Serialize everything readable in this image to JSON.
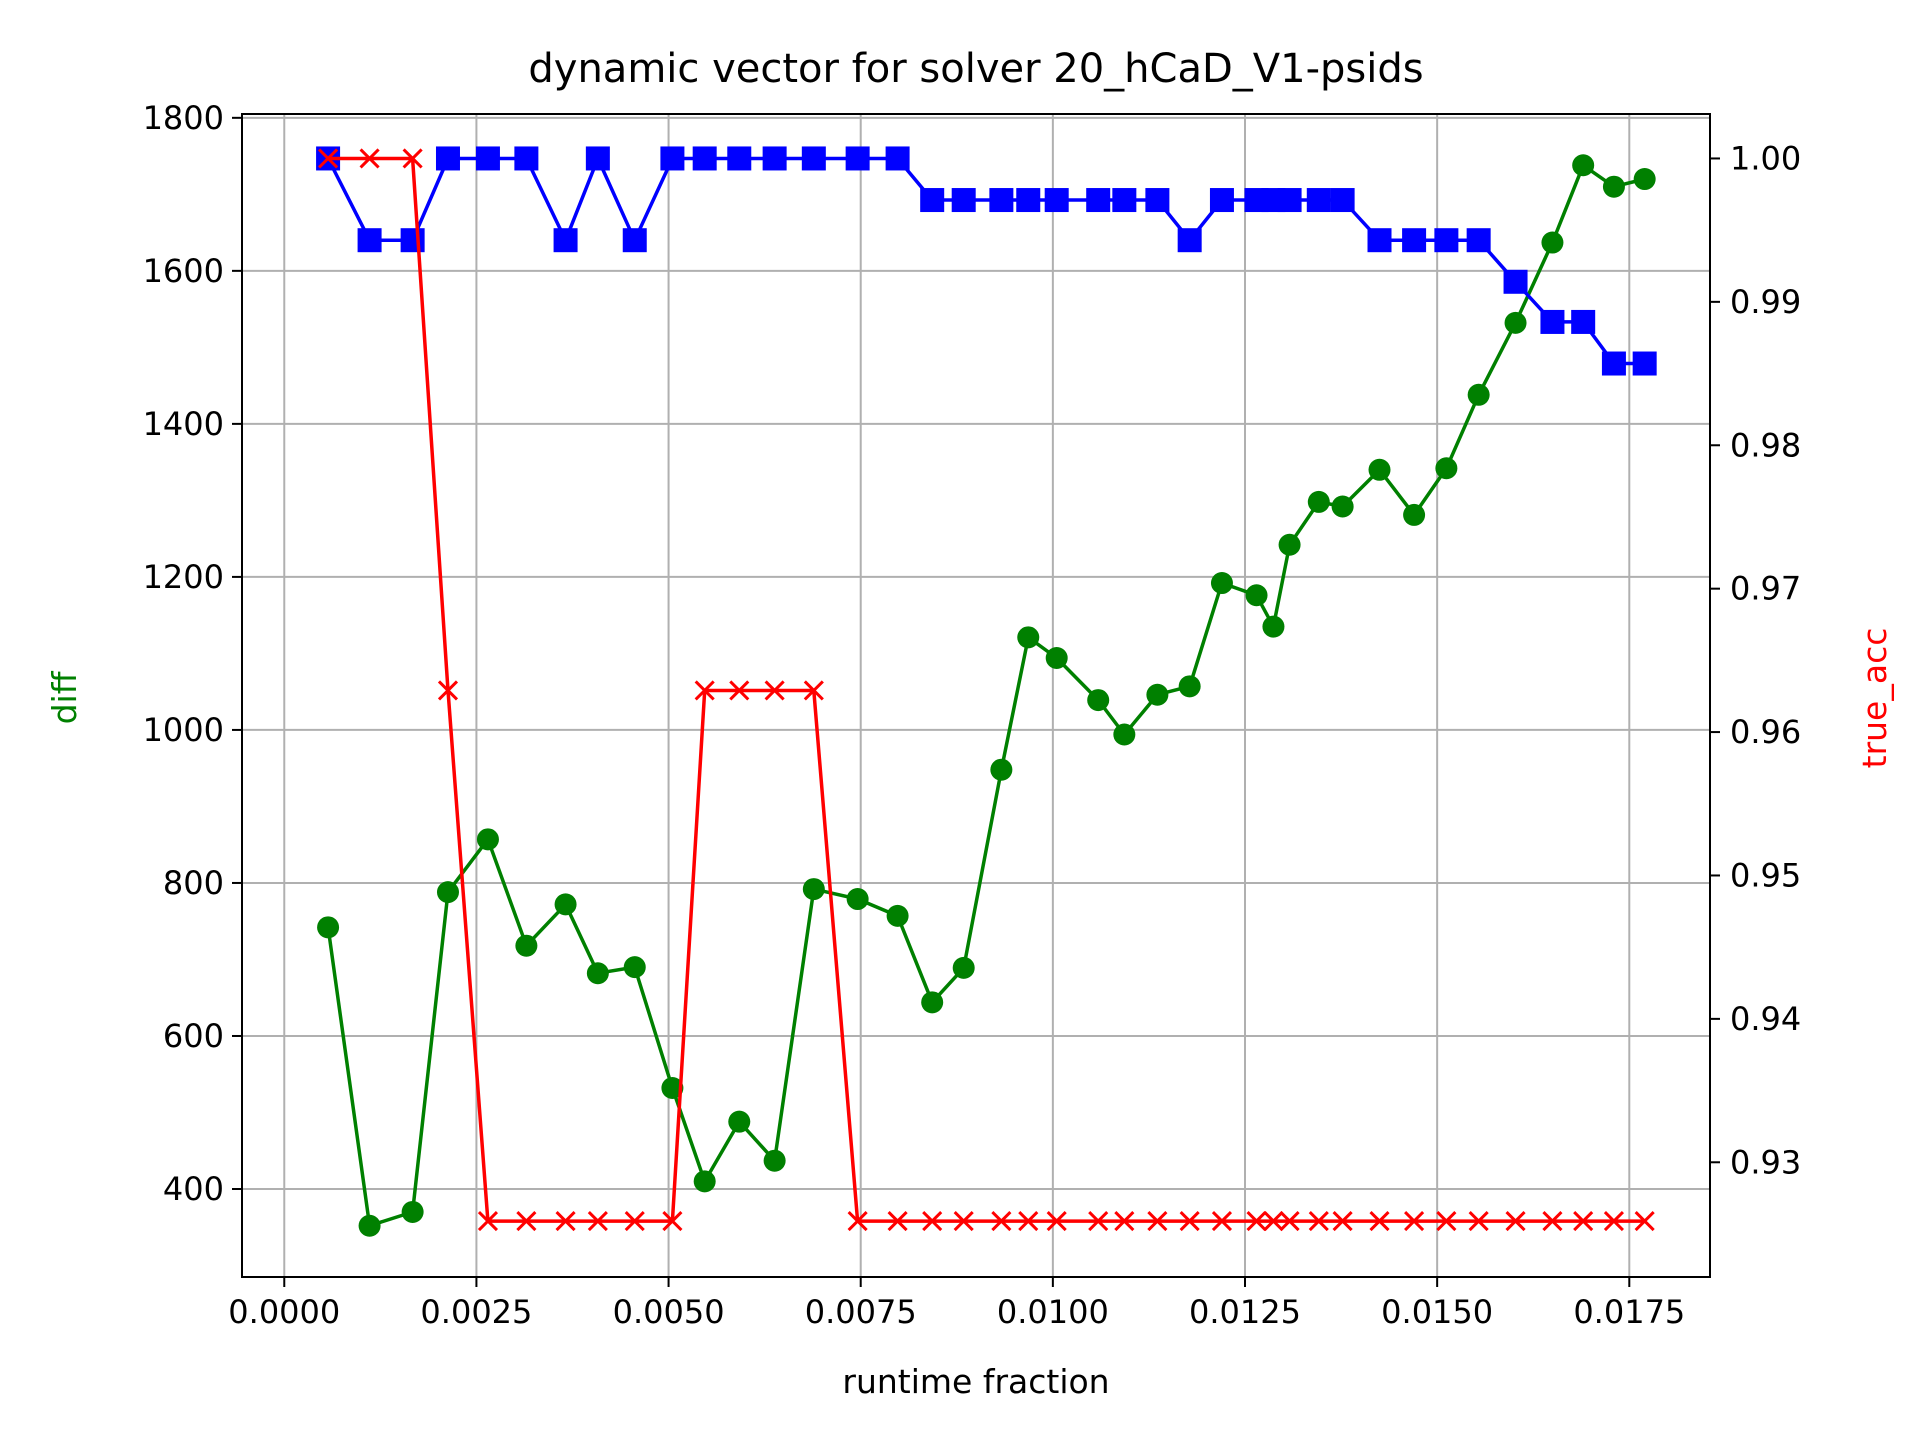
{
  "chart_data": {
    "type": "line",
    "title": "dynamic vector for solver 20_hCaD_V1-psids",
    "xlabel": "runtime fraction",
    "ylabel_left": "diff",
    "ylabel_right": "true_acc",
    "grid": true,
    "xlim": [
      -0.00055,
      0.01855
    ],
    "ylim_left": [
      285,
      1805
    ],
    "ylim_right": [
      0.922,
      1.0031
    ],
    "x_ticks": [
      0.0,
      0.0025,
      0.005,
      0.0075,
      0.01,
      0.0125,
      0.015,
      0.0175
    ],
    "x_tick_labels": [
      "0.0000",
      "0.0025",
      "0.0050",
      "0.0075",
      "0.0100",
      "0.0125",
      "0.0150",
      "0.0175"
    ],
    "y_left_ticks": [
      400,
      600,
      800,
      1000,
      1200,
      1400,
      1600,
      1800
    ],
    "y_left_tick_labels": [
      "400",
      "600",
      "800",
      "1000",
      "1200",
      "1400",
      "1600",
      "1800"
    ],
    "y_right_ticks": [
      0.93,
      0.94,
      0.95,
      0.96,
      0.97,
      0.98,
      0.99,
      1.0
    ],
    "y_right_tick_labels": [
      "0.93",
      "0.94",
      "0.95",
      "0.96",
      "0.97",
      "0.98",
      "0.99",
      "1.00"
    ],
    "colors": {
      "diff": "#008000",
      "true_acc": "#ff0000",
      "blue_series": "#0000ff",
      "grid": "#b0b0b0"
    },
    "x": [
      0.00057,
      0.00111,
      0.00167,
      0.00213,
      0.00265,
      0.00315,
      0.00366,
      0.00408,
      0.00456,
      0.00505,
      0.00547,
      0.00592,
      0.00638,
      0.00689,
      0.00746,
      0.00798,
      0.00843,
      0.00884,
      0.00933,
      0.00968,
      0.01005,
      0.01059,
      0.01093,
      0.01136,
      0.01178,
      0.0122,
      0.01265,
      0.01287,
      0.01308,
      0.01346,
      0.01377,
      0.01425,
      0.0147,
      0.01512,
      0.01554,
      0.01602,
      0.0165,
      0.0169,
      0.0173,
      0.0177
    ],
    "series": [
      {
        "axis": "left",
        "color": "#008000",
        "marker": "circle",
        "values": [
          742,
          352,
          370,
          788,
          857,
          718,
          772,
          682,
          690,
          532,
          410,
          488,
          437,
          792,
          779,
          757,
          644,
          689,
          948,
          1121,
          1094,
          1039,
          994,
          1046,
          1057,
          1192,
          1176,
          1135,
          1242,
          1298,
          1292,
          1340,
          1281,
          1342,
          1438,
          1532,
          1637,
          1738,
          1710,
          1720
        ]
      },
      {
        "axis": "right",
        "color": "#0000ff",
        "marker": "square",
        "values": [
          1.0,
          0.9943,
          0.9943,
          1.0,
          1.0,
          1.0,
          0.9943,
          1.0,
          0.9943,
          1.0,
          1.0,
          1.0,
          1.0,
          1.0,
          1.0,
          1.0,
          0.9971,
          0.9971,
          0.9971,
          0.9971,
          0.9971,
          0.9971,
          0.9971,
          0.9971,
          0.9943,
          0.9971,
          0.9971,
          0.9971,
          0.9971,
          0.9971,
          0.9971,
          0.9943,
          0.9943,
          0.9943,
          0.9943,
          0.9914,
          0.9886,
          0.9886,
          0.9857,
          0.9857
        ]
      },
      {
        "axis": "right",
        "color": "#ff0000",
        "marker": "x",
        "values": [
          1.0,
          1.0,
          1.0,
          0.9629,
          0.9259,
          0.9259,
          0.9259,
          0.9259,
          0.9259,
          0.9259,
          0.9629,
          0.9629,
          0.9629,
          0.9629,
          0.9259,
          0.9259,
          0.9259,
          0.9259,
          0.9259,
          0.9259,
          0.9259,
          0.9259,
          0.9259,
          0.9259,
          0.9259,
          0.9259,
          0.9259,
          0.9259,
          0.9259,
          0.9259,
          0.9259,
          0.9259,
          0.9259,
          0.9259,
          0.9259,
          0.9259,
          0.9259,
          0.9259,
          0.9259,
          0.9259
        ]
      }
    ]
  }
}
